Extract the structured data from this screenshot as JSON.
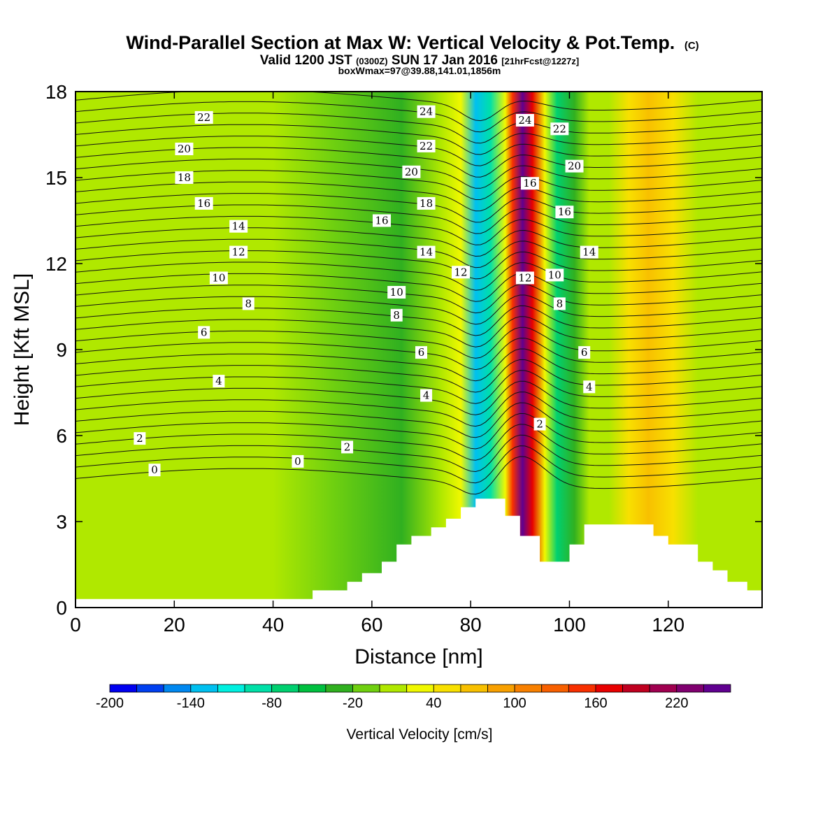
{
  "title": {
    "main": "Wind-Parallel Section at Max W: Vertical Velocity & Pot.Temp.",
    "copyright": "(C)",
    "line2_a": "Valid 1200 JST",
    "line2_b": "(0300Z)",
    "line2_c": "SUN 17 Jan 2016",
    "line2_d": "[21hrFcst@1227z]",
    "line3": "boxWmax=97@39.88,141.01,1856m"
  },
  "chart_data": {
    "type": "heatmap",
    "xlabel": "Distance [nm]",
    "ylabel": "Height [Kft MSL]",
    "xlim": [
      0,
      139
    ],
    "ylim": [
      0,
      18
    ],
    "x_ticks": [
      "0",
      "20",
      "40",
      "60",
      "80",
      "100",
      "120"
    ],
    "x_tick_values": [
      0,
      20,
      40,
      60,
      80,
      100,
      120
    ],
    "y_ticks": [
      "0",
      "3",
      "6",
      "9",
      "12",
      "15",
      "18"
    ],
    "y_tick_values": [
      0,
      3,
      6,
      9,
      12,
      15,
      18
    ],
    "color_variable": "vertical velocity",
    "contour_variable": "potential temperature",
    "velocity_bands": [
      {
        "x": 0,
        "w": 0
      },
      {
        "x": 40,
        "w": 5
      },
      {
        "x": 52,
        "w": -5
      },
      {
        "x": 66,
        "w": -40
      },
      {
        "x": 74,
        "w": 15
      },
      {
        "x": 78,
        "w": 30
      },
      {
        "x": 81,
        "w": -140
      },
      {
        "x": 84,
        "w": -100
      },
      {
        "x": 87,
        "w": 30
      },
      {
        "x": 88.5,
        "w": 140
      },
      {
        "x": 90.5,
        "w": 240
      },
      {
        "x": 92.5,
        "w": 160
      },
      {
        "x": 95,
        "w": 20
      },
      {
        "x": 97.5,
        "w": -80
      },
      {
        "x": 101,
        "w": -40
      },
      {
        "x": 104,
        "w": 0
      },
      {
        "x": 108,
        "w": 5
      },
      {
        "x": 112,
        "w": 40
      },
      {
        "x": 116,
        "w": 70
      },
      {
        "x": 121,
        "w": 50
      },
      {
        "x": 126,
        "w": 10
      },
      {
        "x": 132,
        "w": 0
      },
      {
        "x": 139,
        "w": 5
      }
    ],
    "terrain_kft": [
      [
        0,
        0.3
      ],
      [
        48,
        0.3
      ],
      [
        48,
        0.6
      ],
      [
        55,
        0.6
      ],
      [
        55,
        0.9
      ],
      [
        58,
        0.9
      ],
      [
        58,
        1.2
      ],
      [
        62,
        1.2
      ],
      [
        62,
        1.6
      ],
      [
        65,
        1.6
      ],
      [
        65,
        2.2
      ],
      [
        68,
        2.2
      ],
      [
        68,
        2.5
      ],
      [
        72,
        2.5
      ],
      [
        72,
        2.8
      ],
      [
        75,
        2.8
      ],
      [
        75,
        3.1
      ],
      [
        78,
        3.1
      ],
      [
        78,
        3.5
      ],
      [
        81,
        3.5
      ],
      [
        81,
        3.8
      ],
      [
        87,
        3.8
      ],
      [
        87,
        3.2
      ],
      [
        90,
        3.2
      ],
      [
        90,
        2.5
      ],
      [
        94,
        2.5
      ],
      [
        94,
        1.6
      ],
      [
        100,
        1.6
      ],
      [
        100,
        2.2
      ],
      [
        103,
        2.2
      ],
      [
        103,
        2.9
      ],
      [
        117,
        2.9
      ],
      [
        117,
        2.5
      ],
      [
        120,
        2.5
      ],
      [
        120,
        2.2
      ],
      [
        126,
        2.2
      ],
      [
        126,
        1.6
      ],
      [
        129,
        1.6
      ],
      [
        129,
        1.3
      ],
      [
        132,
        1.3
      ],
      [
        132,
        0.9
      ],
      [
        136,
        0.9
      ],
      [
        136,
        0.6
      ],
      [
        139,
        0.6
      ]
    ],
    "theta_contour_labels": [
      {
        "x": 16,
        "y": 4.8,
        "text": "0"
      },
      {
        "x": 45,
        "y": 5.1,
        "text": "0"
      },
      {
        "x": 13,
        "y": 5.9,
        "text": "2"
      },
      {
        "x": 55,
        "y": 5.6,
        "text": "2"
      },
      {
        "x": 94,
        "y": 6.4,
        "text": "2"
      },
      {
        "x": 29,
        "y": 7.9,
        "text": "4"
      },
      {
        "x": 71,
        "y": 7.4,
        "text": "4"
      },
      {
        "x": 104,
        "y": 7.7,
        "text": "4"
      },
      {
        "x": 26,
        "y": 9.6,
        "text": "6"
      },
      {
        "x": 70,
        "y": 8.9,
        "text": "6"
      },
      {
        "x": 103,
        "y": 8.9,
        "text": "6"
      },
      {
        "x": 35,
        "y": 10.6,
        "text": "8"
      },
      {
        "x": 65,
        "y": 10.2,
        "text": "8"
      },
      {
        "x": 98,
        "y": 10.6,
        "text": "8"
      },
      {
        "x": 29,
        "y": 11.5,
        "text": "10"
      },
      {
        "x": 65,
        "y": 11.0,
        "text": "10"
      },
      {
        "x": 97,
        "y": 11.6,
        "text": "10"
      },
      {
        "x": 33,
        "y": 12.4,
        "text": "12"
      },
      {
        "x": 78,
        "y": 11.7,
        "text": "12"
      },
      {
        "x": 91,
        "y": 11.5,
        "text": "12"
      },
      {
        "x": 33,
        "y": 13.3,
        "text": "14"
      },
      {
        "x": 71,
        "y": 12.4,
        "text": "14"
      },
      {
        "x": 104,
        "y": 12.4,
        "text": "14"
      },
      {
        "x": 26,
        "y": 14.1,
        "text": "16"
      },
      {
        "x": 62,
        "y": 13.5,
        "text": "16"
      },
      {
        "x": 99,
        "y": 13.8,
        "text": "16"
      },
      {
        "x": 22,
        "y": 15.0,
        "text": "18"
      },
      {
        "x": 71,
        "y": 14.1,
        "text": "18"
      },
      {
        "x": 92,
        "y": 14.8,
        "text": "16"
      },
      {
        "x": 22,
        "y": 16.0,
        "text": "20"
      },
      {
        "x": 68,
        "y": 15.2,
        "text": "20"
      },
      {
        "x": 101,
        "y": 15.4,
        "text": "20"
      },
      {
        "x": 26,
        "y": 17.1,
        "text": "22"
      },
      {
        "x": 71,
        "y": 16.1,
        "text": "22"
      },
      {
        "x": 98,
        "y": 16.7,
        "text": "22"
      },
      {
        "x": 71,
        "y": 17.3,
        "text": "24"
      },
      {
        "x": 91,
        "y": 17.0,
        "text": "24"
      }
    ]
  },
  "colorbar": {
    "title": "Vertical Velocity [cm/s]",
    "tick_labels": [
      "-200",
      "-140",
      "-80",
      "-20",
      "40",
      "100",
      "160",
      "220"
    ],
    "tick_values": [
      -200,
      -140,
      -80,
      -20,
      40,
      100,
      160,
      220
    ],
    "bounds": [
      -200,
      260
    ],
    "step": 20,
    "colors": [
      "#0000f0",
      "#0040f0",
      "#0088f0",
      "#00c0f0",
      "#00f0e0",
      "#00e0a8",
      "#00d070",
      "#00c040",
      "#30b020",
      "#70d010",
      "#b0e800",
      "#f0f800",
      "#f8e000",
      "#f8c000",
      "#f8a000",
      "#f88000",
      "#f86000",
      "#f83000",
      "#e80000",
      "#c00020",
      "#a00050",
      "#800070",
      "#600090"
    ]
  }
}
